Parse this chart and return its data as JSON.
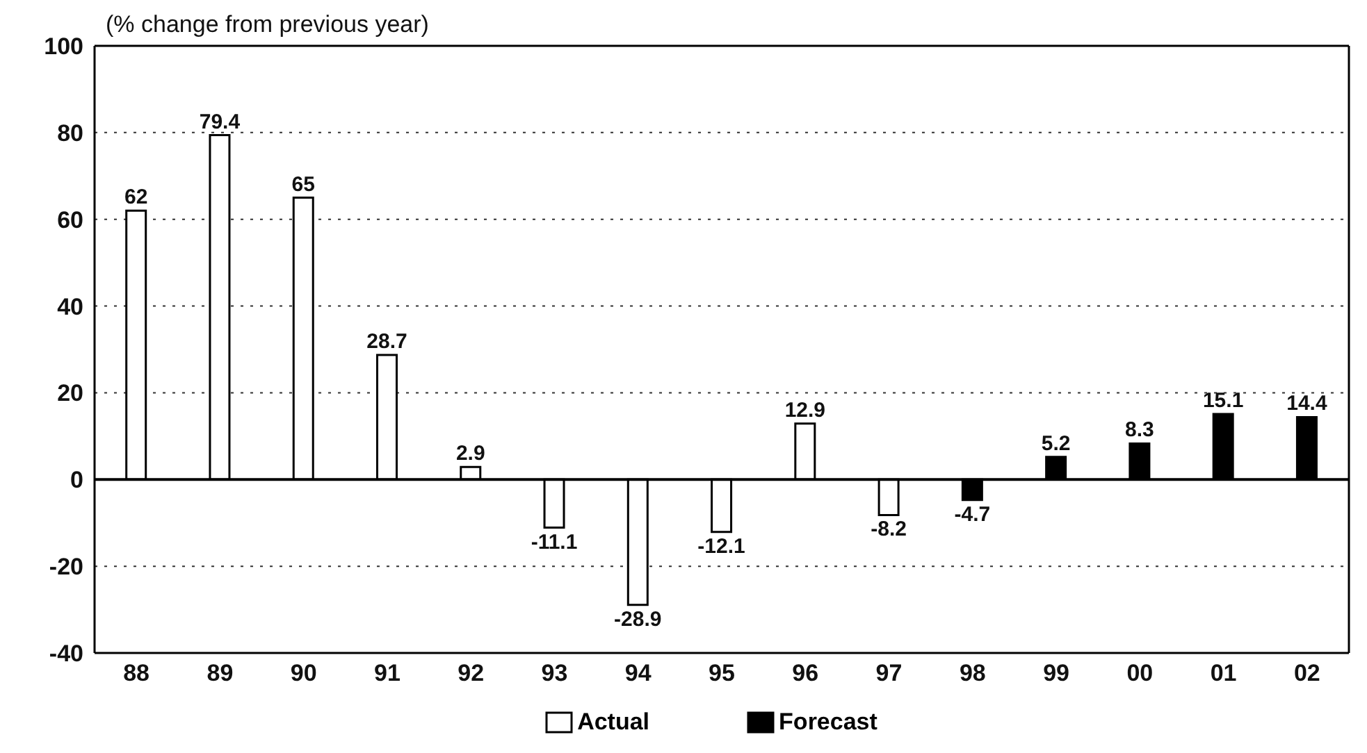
{
  "chart_data": {
    "type": "bar",
    "title": "(% change from previous year)",
    "categories": [
      "88",
      "89",
      "90",
      "91",
      "92",
      "93",
      "94",
      "95",
      "96",
      "97",
      "98",
      "99",
      "00",
      "01",
      "02"
    ],
    "series": [
      {
        "name": "Actual",
        "color": "#ffffff",
        "values": [
          62,
          79.4,
          65,
          28.7,
          2.9,
          -11.1,
          -28.9,
          -12.1,
          12.9,
          -8.2,
          null,
          null,
          null,
          null,
          null
        ]
      },
      {
        "name": "Forecast",
        "color": "#000000",
        "values": [
          null,
          null,
          null,
          null,
          null,
          null,
          null,
          null,
          null,
          null,
          -4.7,
          5.2,
          8.3,
          15.1,
          14.4
        ]
      }
    ],
    "ylim": [
      -40,
      100
    ],
    "yticks": [
      -40,
      -20,
      0,
      20,
      40,
      60,
      80,
      100
    ],
    "grid": "y",
    "legend": "bottom",
    "data_labels": true,
    "ref_lines": [
      {
        "axis": "y",
        "value": 0
      }
    ]
  }
}
